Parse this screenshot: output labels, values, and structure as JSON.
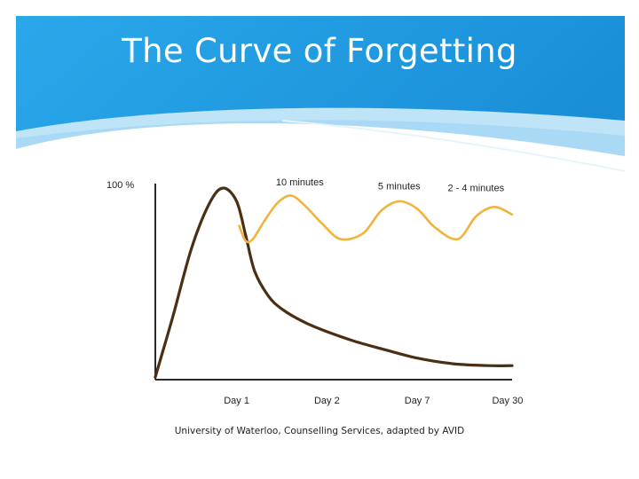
{
  "slide": {
    "title": "The Curve of Forgetting",
    "caption": "University of Waterloo, Counselling Services, adapted by AVID"
  },
  "colors": {
    "header_blue": "#1a9ae0",
    "header_light": "#cfe9f8",
    "retention_curve": "#4a2f14",
    "review_curve": "#f0b43c"
  },
  "chart_data": {
    "type": "line",
    "title": "",
    "xlabel": "",
    "ylabel": "",
    "y_tick_label": "100 %",
    "ylim": [
      0,
      100
    ],
    "x_ticks": [
      {
        "label": "Day 1",
        "x": 1
      },
      {
        "label": "Day 2",
        "x": 2
      },
      {
        "label": "Day 7",
        "x": 3
      },
      {
        "label": "Day 30",
        "x": 4
      }
    ],
    "xlim": [
      0.1,
      4.05
    ],
    "annotations": [
      {
        "text": "10 minutes",
        "x": 1.7,
        "y": 100
      },
      {
        "text": "5 minutes",
        "x": 2.8,
        "y": 98
      },
      {
        "text": "2 - 4 minutes",
        "x": 3.65,
        "y": 97
      }
    ],
    "series": [
      {
        "name": "",
        "color": "#4a2f14",
        "x": [
          0.1,
          0.3,
          0.5,
          0.7,
          0.85,
          1.0,
          1.1,
          1.2,
          1.35,
          1.5,
          1.75,
          2.0,
          2.3,
          2.6,
          3.0,
          3.4,
          3.8,
          4.05
        ],
        "y": [
          0,
          33,
          68,
          92,
          100,
          93,
          75,
          56,
          43,
          36,
          29,
          24,
          19,
          15,
          10,
          7,
          6,
          6
        ]
      },
      {
        "name": "",
        "color": "#f0b43c",
        "x": [
          1.03,
          1.1,
          1.18,
          1.3,
          1.45,
          1.6,
          1.75,
          1.95,
          2.15,
          2.4,
          2.6,
          2.8,
          3.0,
          3.2,
          3.45,
          3.65,
          3.85,
          4.05
        ],
        "y": [
          80,
          72,
          73,
          82,
          92,
          96,
          91,
          81,
          73,
          76,
          88,
          93,
          89,
          79,
          73,
          85,
          90,
          86
        ]
      }
    ]
  }
}
